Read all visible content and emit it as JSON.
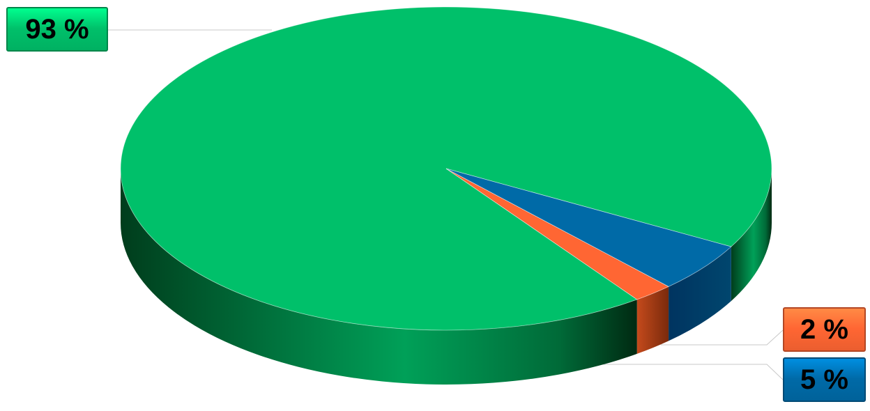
{
  "chart_data": {
    "type": "pie",
    "style": "3d",
    "title": "",
    "legend": "none",
    "slices": [
      {
        "label": "93 %",
        "value": 93,
        "color": "#00c06a",
        "side_color": "#007a40"
      },
      {
        "label": "2 %",
        "value": 2,
        "color": "#ff6633",
        "side_color": "#a83a12"
      },
      {
        "label": "5 %",
        "value": 5,
        "color": "#006aa7",
        "side_color": "#003f68"
      }
    ]
  }
}
